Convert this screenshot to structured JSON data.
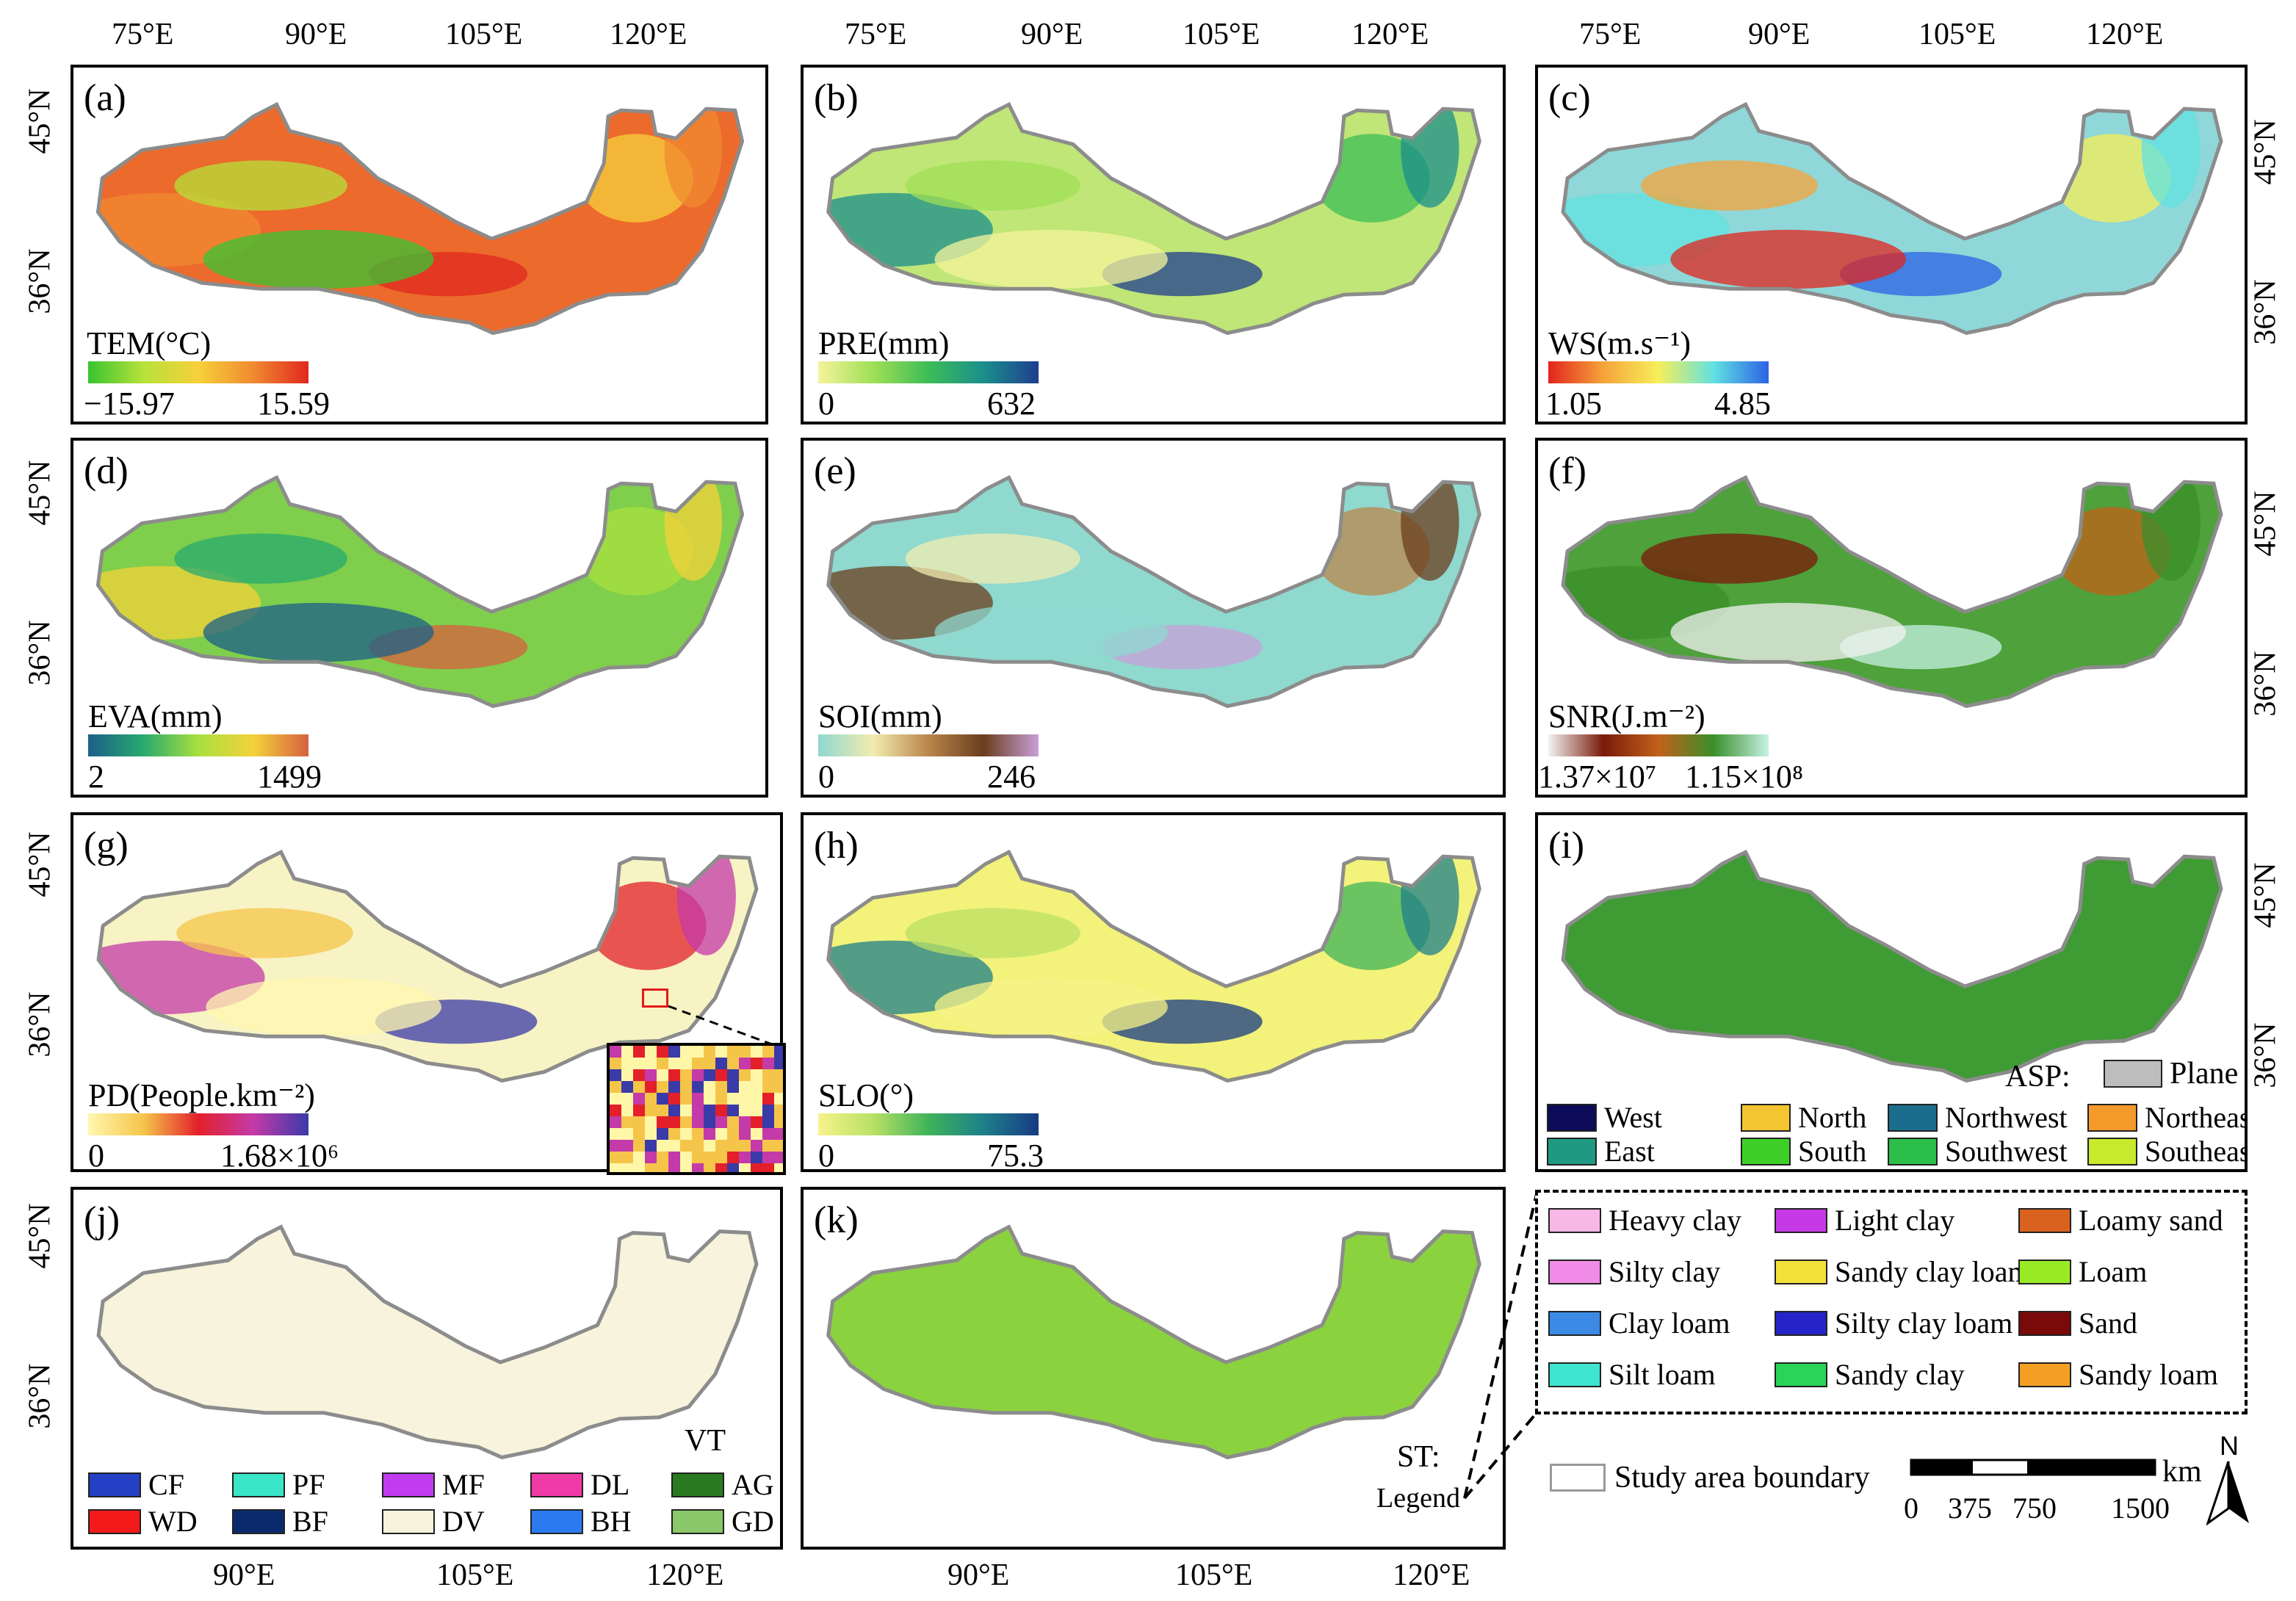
{
  "axes": {
    "top_lon": [
      "75°E",
      "90°E",
      "105°E",
      "120°E"
    ],
    "bottom_lon": [
      "90°E",
      "105°E",
      "120°E"
    ],
    "lat": [
      "45°N",
      "36°N"
    ]
  },
  "panels": [
    {
      "letter": "(a)",
      "title": "TEM(°C)",
      "min": "−15.97",
      "max": "15.59",
      "colors": [
        "#37c431",
        "#b7e23a",
        "#f7d03a",
        "#f08a30",
        "#e0281f"
      ],
      "fill": "#ec6a2c"
    },
    {
      "letter": "(b)",
      "title": "PRE(mm)",
      "min": "0",
      "max": "632",
      "colors": [
        "#f4f49c",
        "#9fdf56",
        "#3cbd56",
        "#1a8f8c",
        "#1f3d8f"
      ],
      "fill": "#bfe676"
    },
    {
      "letter": "(c)",
      "title": "WS(m.s⁻¹)",
      "min": "1.05",
      "max": "4.85",
      "colors": [
        "#e2241e",
        "#f5a43a",
        "#f6ef5a",
        "#61e1e0",
        "#2b62e6"
      ],
      "fill": "#8fd7d8"
    },
    {
      "letter": "(d)",
      "title": "EVA(mm)",
      "min": "2",
      "max": "1499",
      "colors": [
        "#1b5f8a",
        "#27a96e",
        "#a8e03f",
        "#f4d23a",
        "#d6603e"
      ],
      "fill": "#7fce4c"
    },
    {
      "letter": "(e)",
      "title": "SOI(mm)",
      "min": "0",
      "max": "246",
      "colors": [
        "#8fd8d0",
        "#f2ecb0",
        "#b9854b",
        "#6b3d1e",
        "#c7a0d8"
      ],
      "fill": "#8fd9cf"
    },
    {
      "letter": "(f)",
      "title": "SNR(J.m⁻²)",
      "min": "1.37×10⁷",
      "max": "1.15×10⁸",
      "colors": [
        "#f2f2f2",
        "#7a1a0a",
        "#c2611a",
        "#3a8f2a",
        "#c7f2e4"
      ],
      "fill": "#4ea13b"
    },
    {
      "letter": "(g)",
      "title": "PD(People.km⁻²)",
      "min": "0",
      "max": "1.68×10⁶",
      "colors": [
        "#fff7b0",
        "#f5c54a",
        "#e3202a",
        "#c43aa8",
        "#3a3aa8"
      ],
      "fill": "#f7f3c4"
    },
    {
      "letter": "(h)",
      "title": "SLO(°)",
      "min": "0",
      "max": "75.3",
      "colors": [
        "#f7f38a",
        "#b9e066",
        "#3fb35a",
        "#1e7f8a",
        "#173b84"
      ],
      "fill": "#f3f27a"
    },
    {
      "letter": "(i)",
      "fill": "#3f9b33"
    },
    {
      "letter": "(j)",
      "fill": "#f7f3dc"
    },
    {
      "letter": "(k)",
      "fill": "#8bd23f"
    }
  ],
  "aspect_legend": {
    "title": "ASP:",
    "plane": "Plane",
    "items": [
      {
        "label": "West",
        "color": "#0b0b59"
      },
      {
        "label": "North",
        "color": "#f3c531"
      },
      {
        "label": "Northwest",
        "color": "#1a6d8c"
      },
      {
        "label": "Northeast",
        "color": "#f39a2b"
      },
      {
        "label": "East",
        "color": "#1f9a82"
      },
      {
        "label": "South",
        "color": "#3fd028"
      },
      {
        "label": "Southwest",
        "color": "#2bbf4a"
      },
      {
        "label": "Southeast",
        "color": "#c8ea2c"
      }
    ]
  },
  "vegetation_legend": {
    "title": "VT",
    "items": [
      {
        "label": "CF",
        "color": "#2440c4"
      },
      {
        "label": "PF",
        "color": "#39e6c8"
      },
      {
        "label": "MF",
        "color": "#c13bf0"
      },
      {
        "label": "DL",
        "color": "#f03aa8"
      },
      {
        "label": "AG",
        "color": "#2a7a22"
      },
      {
        "label": "WD",
        "color": "#f21a1a"
      },
      {
        "label": "BF",
        "color": "#0b2a6e"
      },
      {
        "label": "DV",
        "color": "#f7f3dc"
      },
      {
        "label": "BH",
        "color": "#2b7af0"
      },
      {
        "label": "GD",
        "color": "#8ac86b"
      }
    ]
  },
  "soil_legend": {
    "title": "ST:",
    "subtitle": "Legend",
    "items": [
      {
        "label": "Heavy clay",
        "color": "#f7b8e6"
      },
      {
        "label": "Light clay",
        "color": "#c53ae6"
      },
      {
        "label": "Loamy sand",
        "color": "#d8621e"
      },
      {
        "label": "Silty clay",
        "color": "#f08ce8"
      },
      {
        "label": "Sandy clay loam",
        "color": "#f3e13a"
      },
      {
        "label": "Loam",
        "color": "#98ea24"
      },
      {
        "label": "Clay loam",
        "color": "#3a8ae6"
      },
      {
        "label": "Silty clay loam",
        "color": "#2424c8"
      },
      {
        "label": "Sand",
        "color": "#7a0a0a"
      },
      {
        "label": "Silt loam",
        "color": "#3ee6d0"
      },
      {
        "label": "Sandy clay",
        "color": "#2ad456"
      },
      {
        "label": "Sandy loam",
        "color": "#f3a025"
      }
    ]
  },
  "footer": {
    "boundary_label": "Study area boundary",
    "scale_unit": "km",
    "scale_ticks": [
      "0",
      "375",
      "750",
      "1500"
    ],
    "north": "N"
  }
}
